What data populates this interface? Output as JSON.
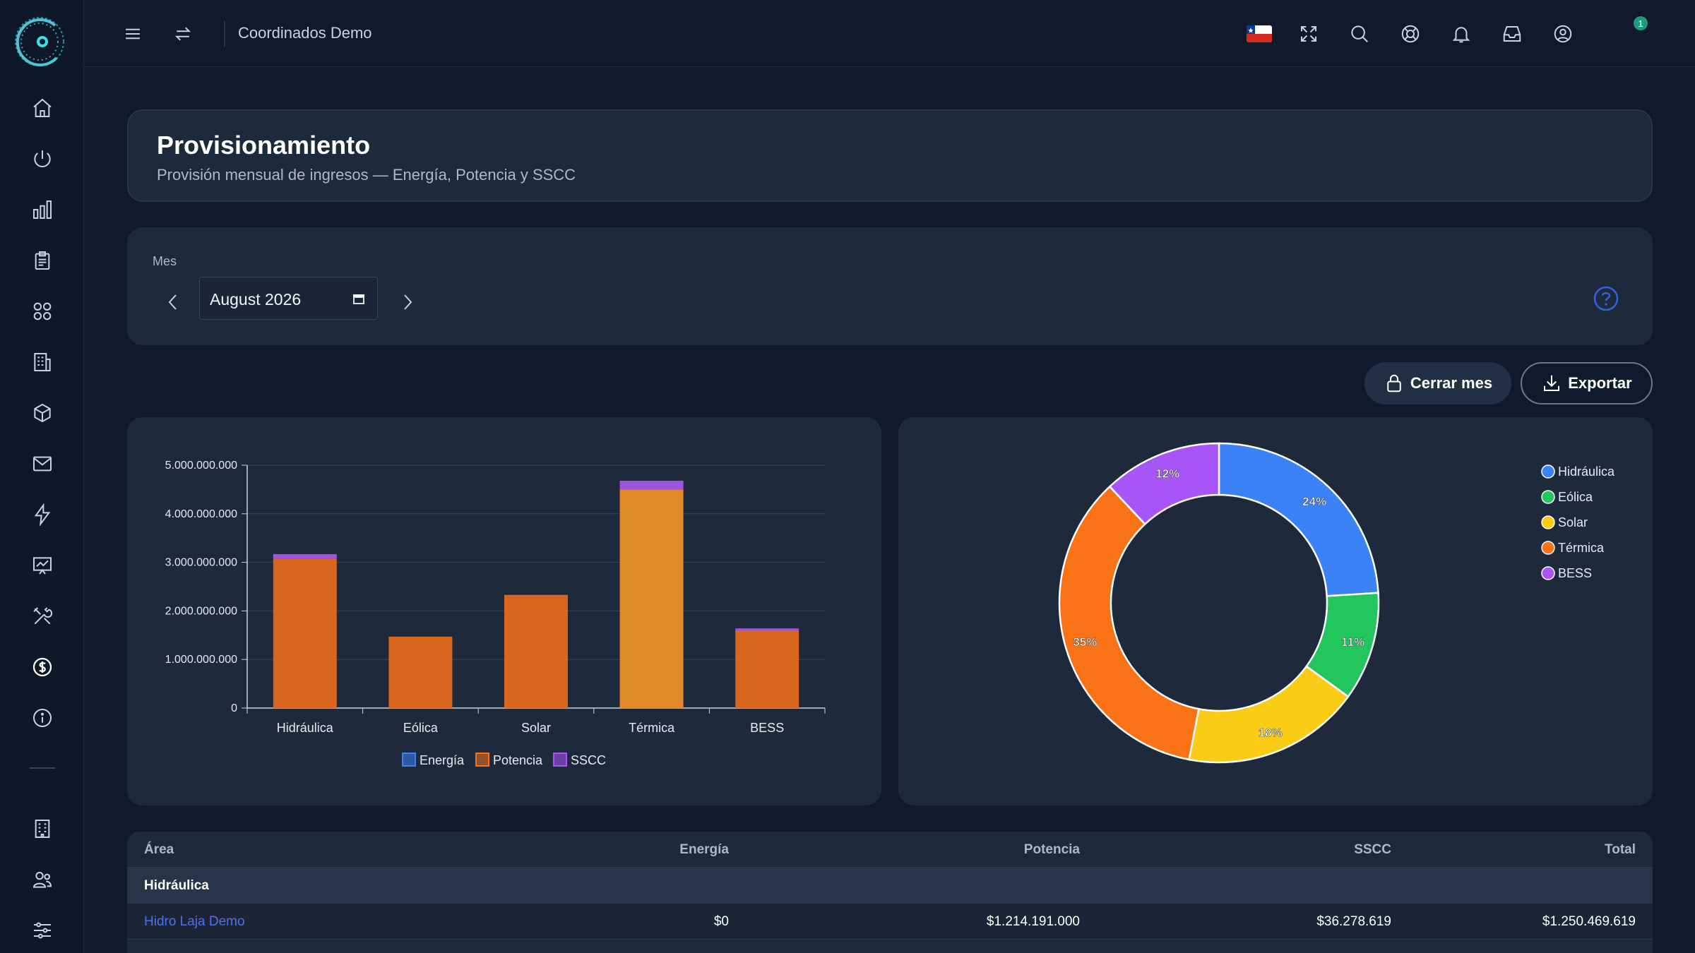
{
  "app": {
    "title": "Coordinados Demo"
  },
  "icons": {
    "sidebar": [
      "home-icon",
      "power-icon",
      "bar-chart-icon",
      "clipboard-icon",
      "apps-icon",
      "building-icon",
      "cube-icon",
      "mail-icon",
      "bolt-icon",
      "presentation-chart-icon",
      "tools-icon",
      "dollar-icon",
      "info-icon",
      "office-icon",
      "users-icon",
      "sliders-icon"
    ],
    "topbar": [
      "menu-icon",
      "swap-icon",
      "chile-flag-icon",
      "fullscreen-icon",
      "search-icon",
      "lifebuoy-icon",
      "bell-icon",
      "inbox-icon",
      "user-icon"
    ]
  },
  "notifications": {
    "count": "1"
  },
  "header": {
    "title": "Provisionamiento",
    "subtitle": "Provisión mensual de ingresos — Energía, Potencia y SSCC"
  },
  "filter": {
    "label": "Mes",
    "value": "August  2026"
  },
  "actions": {
    "close_month": "Cerrar mes",
    "export": "Exportar"
  },
  "colors": {
    "energia": "#3b82f6",
    "potencia": "#f97316",
    "sscc": "#a855f7",
    "hidraulica": "#3b82f6",
    "eolica": "#22c55e",
    "solar": "#facc15",
    "termica": "#f97316",
    "bess": "#a855f7"
  },
  "chart_data": [
    {
      "type": "bar",
      "stacked": true,
      "categories": [
        "Hidráulica",
        "Eólica",
        "Solar",
        "Térmica",
        "BESS"
      ],
      "series": [
        {
          "name": "Energía",
          "values": [
            0,
            0,
            0,
            0,
            0
          ]
        },
        {
          "name": "Potencia",
          "values": [
            3080000000,
            1470000000,
            2330000000,
            4500000000,
            1600000000
          ]
        },
        {
          "name": "SSCC",
          "values": [
            90000000,
            0,
            0,
            180000000,
            40000000
          ]
        }
      ],
      "yticks": [
        "0",
        "1.000.000.000",
        "2.000.000.000",
        "3.000.000.000",
        "4.000.000.000",
        "5.000.000.000"
      ],
      "ylim": [
        0,
        5000000000
      ],
      "grid": true,
      "legend": "bottom"
    },
    {
      "type": "pie",
      "donut": true,
      "labels": [
        "Hidráulica",
        "Eólica",
        "Solar",
        "Térmica",
        "BESS"
      ],
      "values": [
        24,
        11,
        18,
        35,
        12
      ],
      "value_labels": [
        "24%",
        "11%",
        "18%",
        "35%",
        "12%"
      ],
      "legend": "top-right"
    }
  ],
  "table": {
    "headers": [
      "Área",
      "Energía",
      "Potencia",
      "SSCC",
      "Total"
    ],
    "group": "Hidráulica",
    "row": [
      "Hidro Laja Demo",
      "$0",
      "$1.214.191.000",
      "$36.278.619",
      "$1.250.469.619"
    ]
  }
}
